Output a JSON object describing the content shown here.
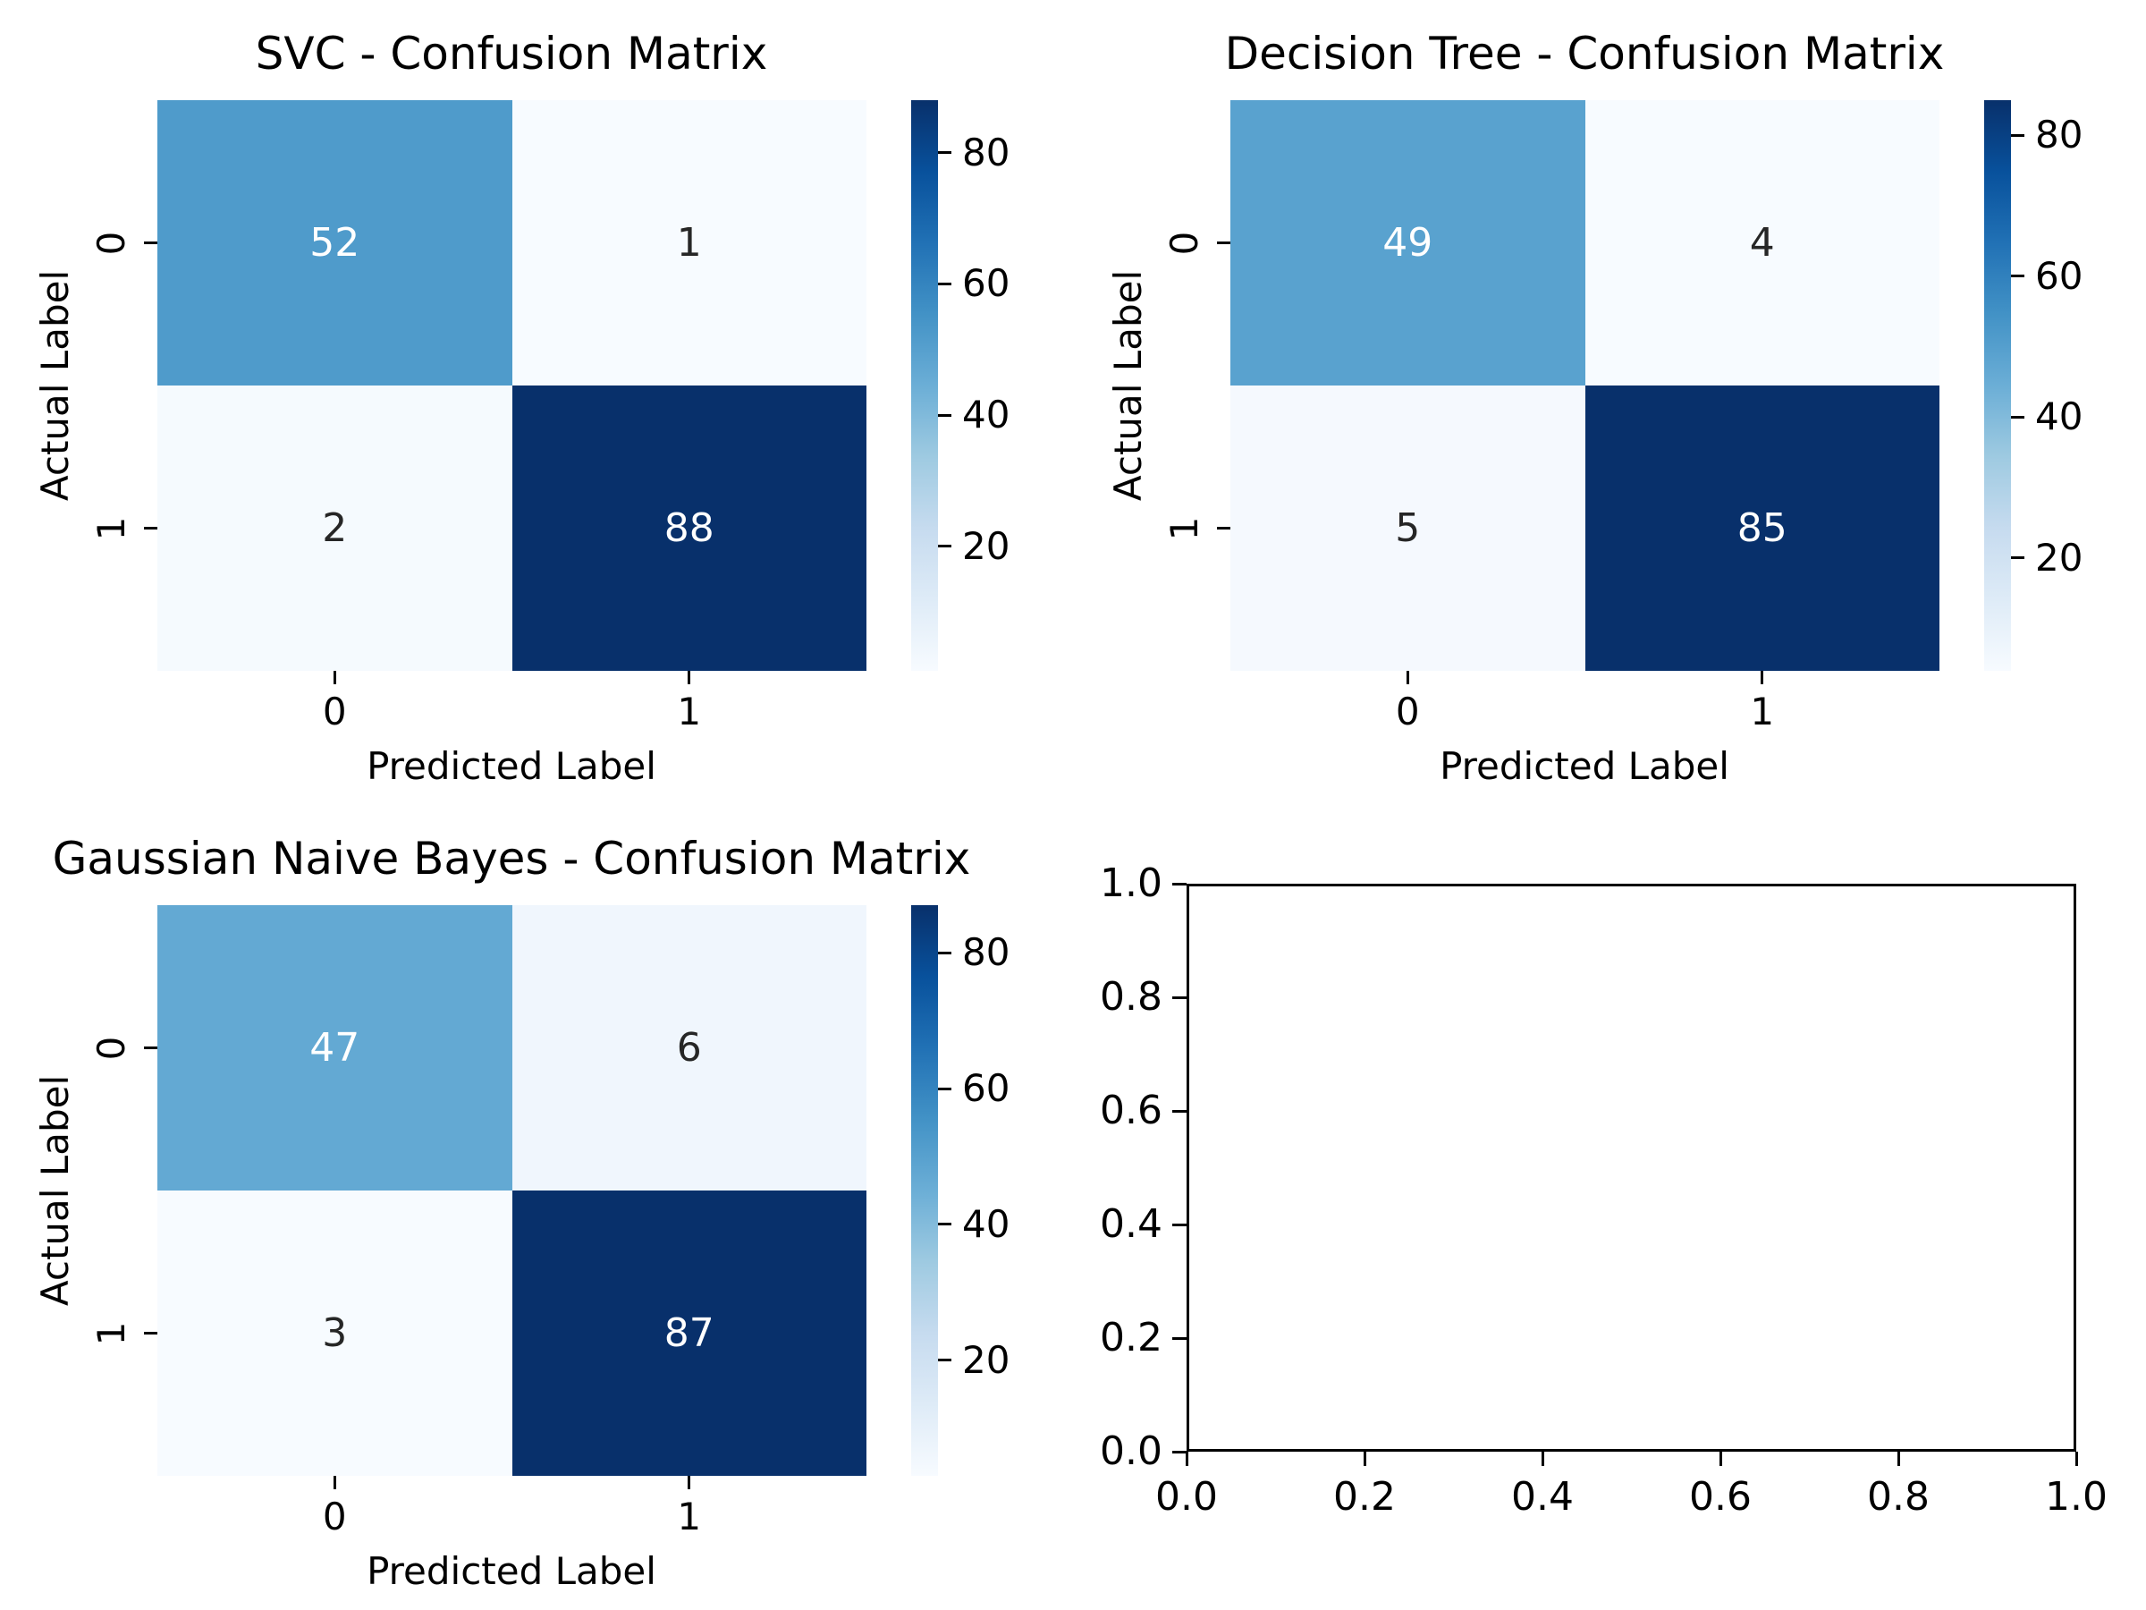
{
  "figure": {
    "background": "#ffffff",
    "text_color": "#000000",
    "spine_color": "#000000"
  },
  "colors": {
    "colormap": "Blues",
    "colormap_stops": [
      "#f7fbff",
      "#deebf7",
      "#c6dbef",
      "#9ecae1",
      "#6baed6",
      "#4292c6",
      "#2171b5",
      "#08519c",
      "#08306b"
    ],
    "annot_on_dark": "#ffffff",
    "annot_on_light": "#262626"
  },
  "chart_data": [
    {
      "type": "heatmap",
      "title": "SVC - Confusion Matrix",
      "xlabel": "Predicted Label",
      "ylabel": "Actual Label",
      "x_ticklabels": [
        "0",
        "1"
      ],
      "y_ticklabels": [
        "0",
        "1"
      ],
      "matrix": [
        [
          52,
          1
        ],
        [
          2,
          88
        ]
      ],
      "vmin": 1,
      "vmax": 88,
      "colorbar_ticks": [
        20,
        40,
        60,
        80
      ],
      "colormap": "Blues",
      "legend_position": "right-colorbar",
      "grid": false
    },
    {
      "type": "heatmap",
      "title": "Decision Tree - Confusion Matrix",
      "xlabel": "Predicted Label",
      "ylabel": "Actual Label",
      "x_ticklabels": [
        "0",
        "1"
      ],
      "y_ticklabels": [
        "0",
        "1"
      ],
      "matrix": [
        [
          49,
          4
        ],
        [
          5,
          85
        ]
      ],
      "vmin": 4,
      "vmax": 85,
      "colorbar_ticks": [
        20,
        40,
        60,
        80
      ],
      "colormap": "Blues",
      "legend_position": "right-colorbar",
      "grid": false
    },
    {
      "type": "heatmap",
      "title": "Gaussian Naive Bayes - Confusion Matrix",
      "xlabel": "Predicted Label",
      "ylabel": "Actual Label",
      "x_ticklabels": [
        "0",
        "1"
      ],
      "y_ticklabels": [
        "0",
        "1"
      ],
      "matrix": [
        [
          47,
          6
        ],
        [
          3,
          87
        ]
      ],
      "vmin": 3,
      "vmax": 87,
      "colorbar_ticks": [
        20,
        40,
        60,
        80
      ],
      "colormap": "Blues",
      "legend_position": "right-colorbar",
      "grid": false
    },
    {
      "type": "empty",
      "title": "",
      "x_ticklabels": [
        "0.0",
        "0.2",
        "0.4",
        "0.6",
        "0.8",
        "1.0"
      ],
      "y_ticklabels": [
        "0.0",
        "0.2",
        "0.4",
        "0.6",
        "0.8",
        "1.0"
      ],
      "xlim": [
        0.0,
        1.0
      ],
      "ylim": [
        0.0,
        1.0
      ],
      "grid": false
    }
  ]
}
